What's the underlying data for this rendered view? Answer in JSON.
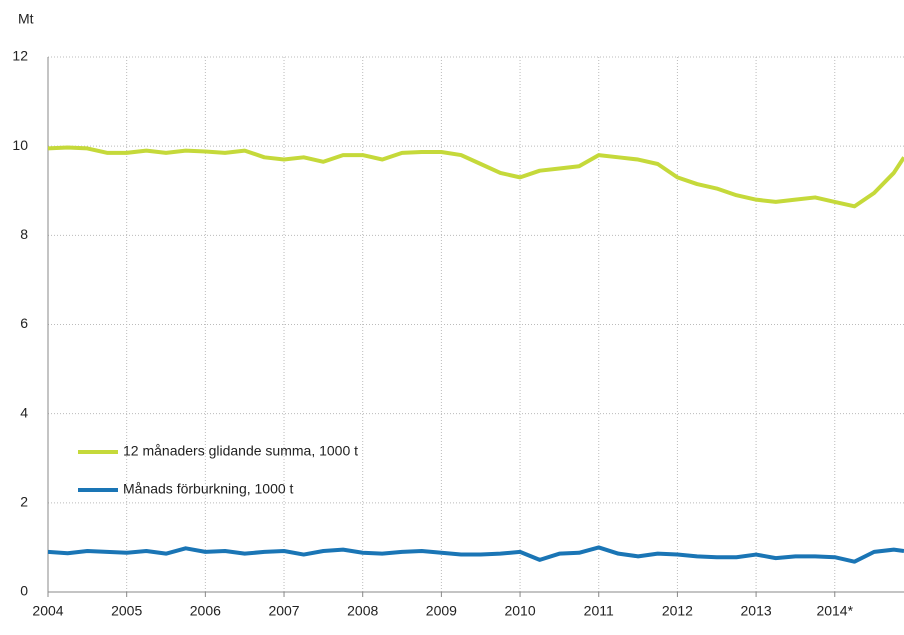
{
  "chart_data": {
    "type": "line",
    "y_label": "Mt",
    "x": [
      2004,
      2004.25,
      2004.5,
      2004.75,
      2005,
      2005.25,
      2005.5,
      2005.75,
      2006,
      2006.25,
      2006.5,
      2006.75,
      2007,
      2007.25,
      2007.5,
      2007.75,
      2008,
      2008.25,
      2008.5,
      2008.75,
      2009,
      2009.25,
      2009.5,
      2009.75,
      2010,
      2010.25,
      2010.5,
      2010.75,
      2011,
      2011.25,
      2011.5,
      2011.75,
      2012,
      2012.25,
      2012.5,
      2012.75,
      2013,
      2013.25,
      2013.5,
      2013.75,
      2014,
      2014.25,
      2014.5,
      2014.75,
      2014.88
    ],
    "series": [
      {
        "name": "12 månaders glidande summa, 1000 t",
        "color": "#c5d93a",
        "values": [
          9.95,
          9.97,
          9.95,
          9.85,
          9.85,
          9.9,
          9.85,
          9.9,
          9.88,
          9.85,
          9.9,
          9.75,
          9.7,
          9.75,
          9.65,
          9.8,
          9.8,
          9.7,
          9.85,
          9.87,
          9.87,
          9.8,
          9.6,
          9.4,
          9.3,
          9.45,
          9.5,
          9.55,
          9.8,
          9.75,
          9.7,
          9.6,
          9.3,
          9.15,
          9.05,
          8.9,
          8.8,
          8.75,
          8.8,
          8.85,
          8.75,
          8.65,
          8.95,
          9.4,
          9.75
        ]
      },
      {
        "name": "Månads förburkning, 1000 t",
        "color": "#1a75b5",
        "values": [
          0.9,
          0.87,
          0.92,
          0.9,
          0.88,
          0.92,
          0.86,
          0.98,
          0.9,
          0.92,
          0.86,
          0.9,
          0.92,
          0.84,
          0.92,
          0.95,
          0.88,
          0.86,
          0.9,
          0.92,
          0.88,
          0.84,
          0.84,
          0.86,
          0.9,
          0.72,
          0.86,
          0.88,
          1.0,
          0.86,
          0.8,
          0.86,
          0.84,
          0.8,
          0.78,
          0.78,
          0.84,
          0.76,
          0.8,
          0.8,
          0.78,
          0.68,
          0.9,
          0.95,
          0.92
        ]
      }
    ],
    "xlim": [
      2004,
      2014.88
    ],
    "xticks": [
      2004,
      2005,
      2006,
      2007,
      2008,
      2009,
      2010,
      2011,
      2012,
      2013,
      {
        "value": 2014,
        "label": "2014*"
      }
    ],
    "ylim": [
      0,
      12
    ],
    "yticks": [
      0,
      2,
      4,
      6,
      8,
      10,
      12
    ],
    "grid": true,
    "legend": "lower left"
  }
}
